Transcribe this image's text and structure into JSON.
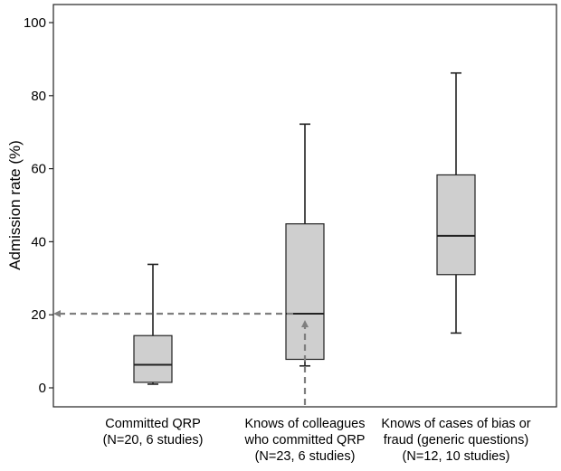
{
  "chart_data": {
    "type": "boxplot",
    "title": "",
    "xlabel": "",
    "ylabel": "Admission rate (%)",
    "ylim": [
      0,
      100
    ],
    "yticks": [
      0,
      20,
      40,
      60,
      80,
      100
    ],
    "grid": false,
    "categories": [
      [
        "Committed QRP",
        "(N=20, 6 studies)"
      ],
      [
        "Knows of colleagues",
        "who committed QRP",
        "(N=23, 6 studies)"
      ],
      [
        "Knows of cases of bias or",
        "fraud (generic questions)",
        "(N=12, 10 studies)"
      ]
    ],
    "boxes": [
      {
        "min": 1,
        "q1": 1.5,
        "median": 6.3,
        "q3": 14.3,
        "max": 33.8
      },
      {
        "min": 6,
        "q1": 7.8,
        "median": 20.3,
        "q3": 44.9,
        "max": 72.2
      },
      {
        "min": 15,
        "q1": 31,
        "median": 41.6,
        "q3": 58.3,
        "max": 86.2
      }
    ],
    "annotation": {
      "type": "dashed-arrows",
      "value": 20.3,
      "category_index": 1,
      "color": "#7f7f7f"
    },
    "colors": {
      "box_fill": "#cfcfcf",
      "line": "#222222"
    }
  }
}
